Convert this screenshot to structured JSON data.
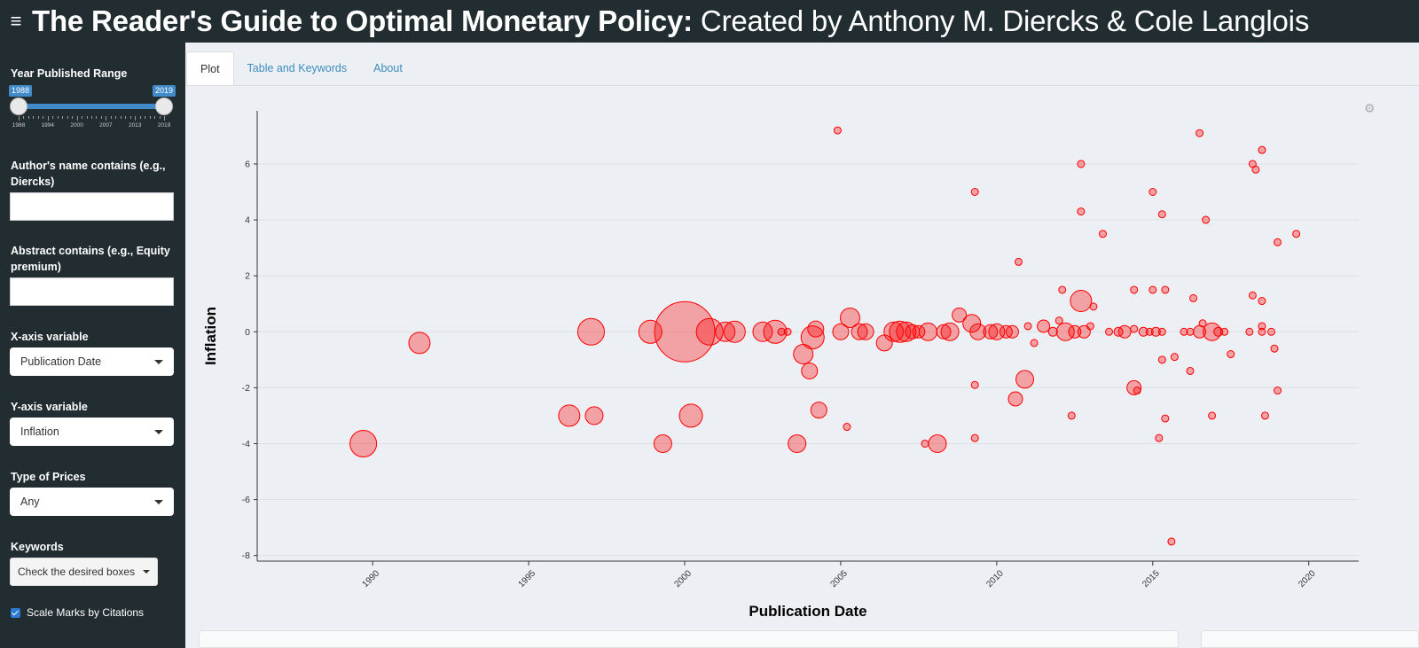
{
  "header": {
    "title_bold": "The Reader's Guide to Optimal Monetary Policy:",
    "title_rest": " Created by Anthony M. Diercks & Cole Langlois",
    "menu_icon": "hamburger-icon"
  },
  "sidebar": {
    "year_label": "Year Published Range",
    "year_min": "1988",
    "year_max": "2019",
    "year_ticks": [
      "1988",
      "1994",
      "2000",
      "2007",
      "2013",
      "2019"
    ],
    "author_label": "Author's name contains (e.g., Diercks)",
    "author_value": "",
    "abstract_label": "Abstract contains (e.g., Equity premium)",
    "abstract_value": "",
    "xaxis_label": "X-axis variable",
    "xaxis_value": "Publication Date",
    "yaxis_label": "Y-axis variable",
    "yaxis_value": "Inflation",
    "prices_label": "Type of Prices",
    "prices_value": "Any",
    "keywords_label": "Keywords",
    "keywords_value": "Check the desired boxes",
    "scale_label": "Scale Marks by Citations",
    "scale_checked": true
  },
  "tabs": [
    "Plot",
    "Table and Keywords",
    "About"
  ],
  "active_tab": "Plot",
  "chart_data": {
    "type": "scatter",
    "xlabel": "Publication Date",
    "ylabel": "Inflation",
    "xlim": [
      1986.3,
      2021.6
    ],
    "ylim": [
      -8.2,
      7.9
    ],
    "xticks": [
      "1990",
      "1995",
      "2000",
      "2005",
      "2010",
      "2015",
      "2020"
    ],
    "yticks": [
      "-8",
      "-6",
      "-4",
      "-2",
      "0",
      "2",
      "4",
      "6"
    ],
    "marker_color": "#ff0000",
    "points": [
      {
        "x": 1989.7,
        "y": -4.0,
        "size": 15
      },
      {
        "x": 1991.5,
        "y": -0.4,
        "size": 12
      },
      {
        "x": 1996.3,
        "y": -3.0,
        "size": 12
      },
      {
        "x": 1997.0,
        "y": 0.0,
        "size": 15
      },
      {
        "x": 1997.1,
        "y": -3.0,
        "size": 10
      },
      {
        "x": 1999.3,
        "y": -4.0,
        "size": 10
      },
      {
        "x": 1998.9,
        "y": 0.0,
        "size": 13
      },
      {
        "x": 2000.0,
        "y": 0.0,
        "size": 34
      },
      {
        "x": 2000.2,
        "y": -3.0,
        "size": 13
      },
      {
        "x": 2000.8,
        "y": 0.0,
        "size": 15
      },
      {
        "x": 2001.3,
        "y": 0.0,
        "size": 11
      },
      {
        "x": 2001.6,
        "y": 0.0,
        "size": 12
      },
      {
        "x": 2002.5,
        "y": 0.0,
        "size": 11
      },
      {
        "x": 2002.9,
        "y": 0.0,
        "size": 13
      },
      {
        "x": 2003.1,
        "y": 0.0,
        "size": 4
      },
      {
        "x": 2003.3,
        "y": 0.0,
        "size": 4
      },
      {
        "x": 2003.6,
        "y": -4.0,
        "size": 10
      },
      {
        "x": 2003.8,
        "y": -0.8,
        "size": 11
      },
      {
        "x": 2004.0,
        "y": -1.4,
        "size": 9
      },
      {
        "x": 2004.1,
        "y": -0.2,
        "size": 13
      },
      {
        "x": 2004.2,
        "y": 0.1,
        "size": 9
      },
      {
        "x": 2004.3,
        "y": -2.8,
        "size": 9
      },
      {
        "x": 2004.9,
        "y": 7.2,
        "size": 4
      },
      {
        "x": 2005.0,
        "y": 0.0,
        "size": 9
      },
      {
        "x": 2005.2,
        "y": -3.4,
        "size": 4
      },
      {
        "x": 2005.3,
        "y": 0.5,
        "size": 11
      },
      {
        "x": 2005.6,
        "y": 0.0,
        "size": 9
      },
      {
        "x": 2005.8,
        "y": 0.0,
        "size": 9
      },
      {
        "x": 2006.4,
        "y": -0.4,
        "size": 9
      },
      {
        "x": 2006.7,
        "y": 0.0,
        "size": 11
      },
      {
        "x": 2006.9,
        "y": 0.0,
        "size": 12
      },
      {
        "x": 2007.1,
        "y": 0.0,
        "size": 11
      },
      {
        "x": 2007.3,
        "y": 0.0,
        "size": 8
      },
      {
        "x": 2007.5,
        "y": 0.0,
        "size": 7
      },
      {
        "x": 2007.7,
        "y": -4.0,
        "size": 4
      },
      {
        "x": 2007.8,
        "y": 0.0,
        "size": 10
      },
      {
        "x": 2008.1,
        "y": -4.0,
        "size": 10
      },
      {
        "x": 2008.3,
        "y": 0.0,
        "size": 8
      },
      {
        "x": 2008.5,
        "y": 0.0,
        "size": 10
      },
      {
        "x": 2008.8,
        "y": 0.6,
        "size": 8
      },
      {
        "x": 2009.2,
        "y": 0.3,
        "size": 10
      },
      {
        "x": 2009.3,
        "y": -1.9,
        "size": 4
      },
      {
        "x": 2009.3,
        "y": 5.0,
        "size": 4
      },
      {
        "x": 2009.3,
        "y": -3.8,
        "size": 4
      },
      {
        "x": 2009.4,
        "y": 0.0,
        "size": 9
      },
      {
        "x": 2009.8,
        "y": 0.0,
        "size": 8
      },
      {
        "x": 2010.0,
        "y": 0.0,
        "size": 9
      },
      {
        "x": 2010.3,
        "y": 0.0,
        "size": 7
      },
      {
        "x": 2010.5,
        "y": 0.0,
        "size": 7
      },
      {
        "x": 2010.6,
        "y": -2.4,
        "size": 8
      },
      {
        "x": 2010.7,
        "y": 2.5,
        "size": 4
      },
      {
        "x": 2010.9,
        "y": -1.7,
        "size": 10
      },
      {
        "x": 2011.0,
        "y": 0.2,
        "size": 4
      },
      {
        "x": 2011.2,
        "y": -0.4,
        "size": 4
      },
      {
        "x": 2011.5,
        "y": 0.2,
        "size": 7
      },
      {
        "x": 2011.8,
        "y": 0.0,
        "size": 5
      },
      {
        "x": 2012.0,
        "y": 0.4,
        "size": 4
      },
      {
        "x": 2012.1,
        "y": 1.5,
        "size": 4
      },
      {
        "x": 2012.2,
        "y": 0.0,
        "size": 10
      },
      {
        "x": 2012.4,
        "y": -3.0,
        "size": 4
      },
      {
        "x": 2012.5,
        "y": 0.0,
        "size": 7
      },
      {
        "x": 2012.7,
        "y": 6.0,
        "size": 4
      },
      {
        "x": 2012.7,
        "y": 4.3,
        "size": 4
      },
      {
        "x": 2012.7,
        "y": 1.1,
        "size": 12
      },
      {
        "x": 2012.8,
        "y": 0.0,
        "size": 7
      },
      {
        "x": 2013.0,
        "y": 0.2,
        "size": 4
      },
      {
        "x": 2013.1,
        "y": 0.9,
        "size": 4
      },
      {
        "x": 2013.4,
        "y": 3.5,
        "size": 4
      },
      {
        "x": 2013.6,
        "y": 0.0,
        "size": 4
      },
      {
        "x": 2013.9,
        "y": 0.0,
        "size": 5
      },
      {
        "x": 2014.1,
        "y": 0.0,
        "size": 7
      },
      {
        "x": 2014.4,
        "y": 0.1,
        "size": 4
      },
      {
        "x": 2014.4,
        "y": 1.5,
        "size": 4
      },
      {
        "x": 2014.4,
        "y": -2.0,
        "size": 8
      },
      {
        "x": 2014.5,
        "y": -2.1,
        "size": 4
      },
      {
        "x": 2014.7,
        "y": 0.0,
        "size": 5
      },
      {
        "x": 2014.9,
        "y": 0.0,
        "size": 4
      },
      {
        "x": 2015.0,
        "y": 5.0,
        "size": 4
      },
      {
        "x": 2015.0,
        "y": 1.5,
        "size": 4
      },
      {
        "x": 2015.1,
        "y": 0.0,
        "size": 5
      },
      {
        "x": 2015.2,
        "y": -3.8,
        "size": 4
      },
      {
        "x": 2015.3,
        "y": 4.2,
        "size": 4
      },
      {
        "x": 2015.3,
        "y": -1.0,
        "size": 4
      },
      {
        "x": 2015.3,
        "y": 0.0,
        "size": 4
      },
      {
        "x": 2015.4,
        "y": 1.5,
        "size": 4
      },
      {
        "x": 2015.4,
        "y": -3.1,
        "size": 4
      },
      {
        "x": 2015.6,
        "y": -7.5,
        "size": 4
      },
      {
        "x": 2015.7,
        "y": -0.9,
        "size": 4
      },
      {
        "x": 2016.0,
        "y": 0.0,
        "size": 4
      },
      {
        "x": 2016.2,
        "y": 0.0,
        "size": 4
      },
      {
        "x": 2016.2,
        "y": -1.4,
        "size": 4
      },
      {
        "x": 2016.3,
        "y": 1.2,
        "size": 4
      },
      {
        "x": 2016.5,
        "y": 7.1,
        "size": 4
      },
      {
        "x": 2016.5,
        "y": 0.0,
        "size": 7
      },
      {
        "x": 2016.6,
        "y": 0.3,
        "size": 4
      },
      {
        "x": 2016.7,
        "y": 4.0,
        "size": 4
      },
      {
        "x": 2016.9,
        "y": -3.0,
        "size": 4
      },
      {
        "x": 2016.9,
        "y": 0.0,
        "size": 10
      },
      {
        "x": 2017.1,
        "y": 0.0,
        "size": 5
      },
      {
        "x": 2017.3,
        "y": 0.0,
        "size": 4
      },
      {
        "x": 2017.5,
        "y": -0.8,
        "size": 4
      },
      {
        "x": 2018.1,
        "y": 0.0,
        "size": 4
      },
      {
        "x": 2018.2,
        "y": 6.0,
        "size": 4
      },
      {
        "x": 2018.2,
        "y": 1.3,
        "size": 4
      },
      {
        "x": 2018.3,
        "y": 5.8,
        "size": 4
      },
      {
        "x": 2018.5,
        "y": 6.5,
        "size": 4
      },
      {
        "x": 2018.5,
        "y": 1.1,
        "size": 4
      },
      {
        "x": 2018.5,
        "y": 0.2,
        "size": 4
      },
      {
        "x": 2018.5,
        "y": 0.0,
        "size": 4
      },
      {
        "x": 2018.6,
        "y": -3.0,
        "size": 4
      },
      {
        "x": 2018.8,
        "y": 0.0,
        "size": 4
      },
      {
        "x": 2018.9,
        "y": -0.6,
        "size": 4
      },
      {
        "x": 2019.0,
        "y": 3.2,
        "size": 4
      },
      {
        "x": 2019.0,
        "y": -2.1,
        "size": 4
      },
      {
        "x": 2019.6,
        "y": 3.5,
        "size": 4
      }
    ]
  }
}
